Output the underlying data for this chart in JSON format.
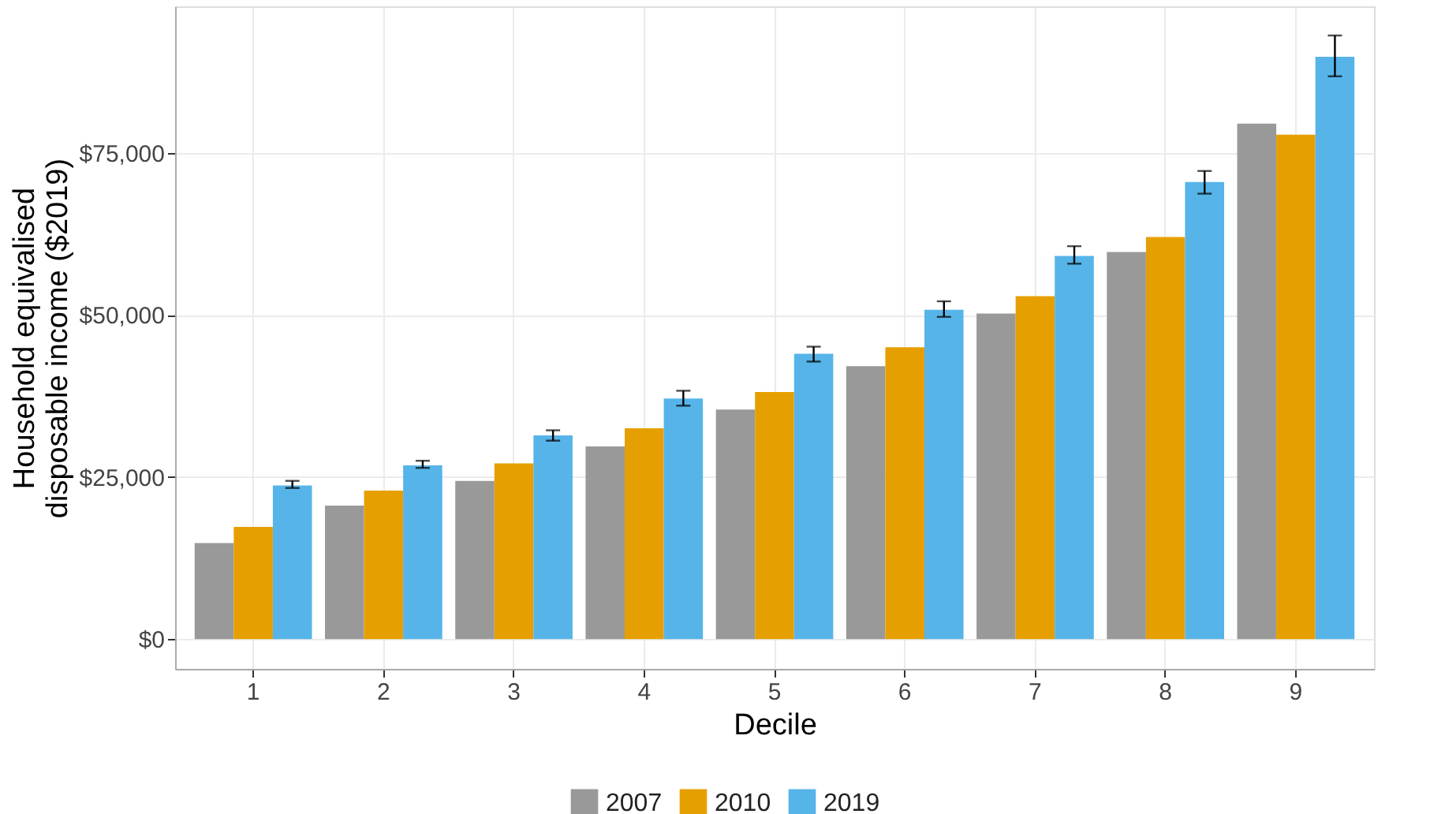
{
  "chart_data": {
    "type": "bar",
    "xlabel": "Decile",
    "ylabel": "Household equivalised\ndisposable income ($2019)",
    "categories": [
      "1",
      "2",
      "3",
      "4",
      "5",
      "6",
      "7",
      "8",
      "9"
    ],
    "series": [
      {
        "name": "2007",
        "color": "#999999",
        "values": [
          14800,
          20600,
          24400,
          29700,
          35400,
          42100,
          50200,
          59700,
          79500
        ]
      },
      {
        "name": "2010",
        "color": "#e69f00",
        "values": [
          17300,
          22900,
          27100,
          32500,
          38100,
          45000,
          52900,
          62000,
          77800
        ]
      },
      {
        "name": "2019",
        "color": "#56b4e9",
        "values": [
          23700,
          26800,
          31400,
          37100,
          44000,
          50800,
          59100,
          70500,
          89800
        ],
        "errors": [
          [
            23300,
            24400
          ],
          [
            26400,
            27500
          ],
          [
            30600,
            32200
          ],
          [
            36000,
            38300
          ],
          [
            42800,
            45100
          ],
          [
            49700,
            52100
          ],
          [
            57900,
            60600
          ],
          [
            68700,
            72200
          ],
          [
            86800,
            93100
          ]
        ]
      }
    ],
    "ylim": [
      -4600,
      97600
    ],
    "yticks": [
      {
        "value": 0,
        "label": "$0"
      },
      {
        "value": 25000,
        "label": "$25,000"
      },
      {
        "value": 50000,
        "label": "$50,000"
      },
      {
        "value": 75000,
        "label": "$75,000"
      }
    ],
    "grid": true,
    "legend": "bottom"
  }
}
